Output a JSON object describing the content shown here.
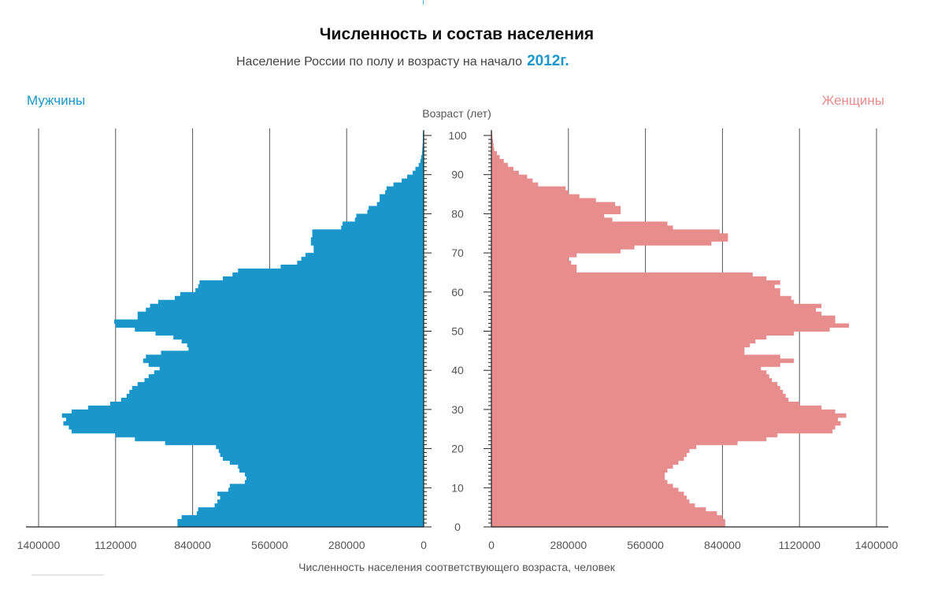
{
  "chart_data": {
    "type": "bar",
    "orientation": "horizontal-population-pyramid",
    "title": "Численность и состав населения",
    "subtitle": "Население России по полу и возрасту на начало",
    "subtitle_year": "2012г.",
    "center_axis_label": "Возраст (лет)",
    "xlabel": "Численность населения соответствующего возраста,  человек",
    "age_ticks": [
      "0",
      "10",
      "20",
      "30",
      "40",
      "50",
      "60",
      "70",
      "80",
      "90",
      "100"
    ],
    "x_ticks_left": [
      "1400000",
      "1120000",
      "840000",
      "560000",
      "280000",
      "0"
    ],
    "x_ticks_right": [
      "0",
      "280000",
      "560000",
      "840000",
      "1120000",
      "1400000"
    ],
    "xlim": [
      0,
      1400000
    ],
    "age_range": [
      0,
      100
    ],
    "grid": "vertical",
    "colors": {
      "male": "#1a96cb",
      "female": "#e88d8d"
    },
    "series": [
      {
        "name": "Мужчины",
        "ages": [
          0,
          1,
          2,
          3,
          4,
          5,
          6,
          7,
          8,
          9,
          10,
          11,
          12,
          13,
          14,
          15,
          16,
          17,
          18,
          19,
          20,
          21,
          22,
          23,
          24,
          25,
          26,
          27,
          28,
          29,
          30,
          31,
          32,
          33,
          34,
          35,
          36,
          37,
          38,
          39,
          40,
          41,
          42,
          43,
          44,
          45,
          46,
          47,
          48,
          49,
          50,
          51,
          52,
          53,
          54,
          55,
          56,
          57,
          58,
          59,
          60,
          61,
          62,
          63,
          64,
          65,
          66,
          67,
          68,
          69,
          70,
          71,
          72,
          73,
          74,
          75,
          76,
          77,
          78,
          79,
          80,
          81,
          82,
          83,
          84,
          85,
          86,
          87,
          88,
          89,
          90,
          91,
          92,
          93,
          94,
          95,
          96,
          97,
          98,
          99,
          100
        ],
        "values": [
          895000,
          895000,
          880000,
          825000,
          820000,
          760000,
          750000,
          740000,
          750000,
          710000,
          705000,
          650000,
          645000,
          650000,
          670000,
          675000,
          705000,
          730000,
          740000,
          745000,
          755000,
          940000,
          1050000,
          1120000,
          1280000,
          1290000,
          1310000,
          1300000,
          1315000,
          1280000,
          1220000,
          1140000,
          1100000,
          1080000,
          1070000,
          1060000,
          1040000,
          1015000,
          1000000,
          980000,
          960000,
          1000000,
          1020000,
          1010000,
          955000,
          855000,
          860000,
          880000,
          910000,
          975000,
          1050000,
          1120000,
          1125000,
          1040000,
          1040000,
          1010000,
          995000,
          965000,
          905000,
          885000,
          830000,
          820000,
          815000,
          730000,
          695000,
          675000,
          520000,
          460000,
          445000,
          430000,
          400000,
          400000,
          410000,
          410000,
          405000,
          405000,
          300000,
          295000,
          250000,
          245000,
          205000,
          200000,
          170000,
          160000,
          160000,
          140000,
          135000,
          110000,
          80000,
          60000,
          40000,
          30000,
          18000,
          12000,
          9000,
          6000,
          5000,
          4000,
          3000,
          3000,
          3000,
          2000,
          2000
        ]
      },
      {
        "name": "Женщины",
        "ages": [
          0,
          1,
          2,
          3,
          4,
          5,
          6,
          7,
          8,
          9,
          10,
          11,
          12,
          13,
          14,
          15,
          16,
          17,
          18,
          19,
          20,
          21,
          22,
          23,
          24,
          25,
          26,
          27,
          28,
          29,
          30,
          31,
          32,
          33,
          34,
          35,
          36,
          37,
          38,
          39,
          40,
          41,
          42,
          43,
          44,
          45,
          46,
          47,
          48,
          49,
          50,
          51,
          52,
          53,
          54,
          55,
          56,
          57,
          58,
          59,
          60,
          61,
          62,
          63,
          64,
          65,
          66,
          67,
          68,
          69,
          70,
          71,
          72,
          73,
          74,
          75,
          76,
          77,
          78,
          79,
          80,
          81,
          82,
          83,
          84,
          85,
          86,
          87,
          88,
          89,
          90,
          91,
          92,
          93,
          94,
          95,
          96,
          97,
          98,
          99,
          100
        ],
        "values": [
          850000,
          850000,
          840000,
          820000,
          780000,
          740000,
          720000,
          710000,
          700000,
          680000,
          660000,
          640000,
          630000,
          630000,
          640000,
          660000,
          680000,
          700000,
          710000,
          720000,
          745000,
          895000,
          1000000,
          1040000,
          1240000,
          1250000,
          1270000,
          1260000,
          1290000,
          1250000,
          1200000,
          1120000,
          1080000,
          1070000,
          1060000,
          1050000,
          1040000,
          1020000,
          1010000,
          1000000,
          980000,
          1050000,
          1100000,
          1050000,
          920000,
          920000,
          940000,
          960000,
          1000000,
          1100000,
          1230000,
          1300000,
          1250000,
          1250000,
          1200000,
          1180000,
          1200000,
          1100000,
          1090000,
          1050000,
          1050000,
          1030000,
          1050000,
          1000000,
          950000,
          310000,
          310000,
          290000,
          280000,
          310000,
          470000,
          520000,
          800000,
          860000,
          860000,
          830000,
          660000,
          640000,
          440000,
          410000,
          470000,
          470000,
          450000,
          380000,
          320000,
          280000,
          270000,
          170000,
          150000,
          130000,
          100000,
          80000,
          60000,
          45000,
          30000,
          20000,
          10000,
          8000,
          6000,
          4000,
          3000
        ]
      }
    ]
  }
}
